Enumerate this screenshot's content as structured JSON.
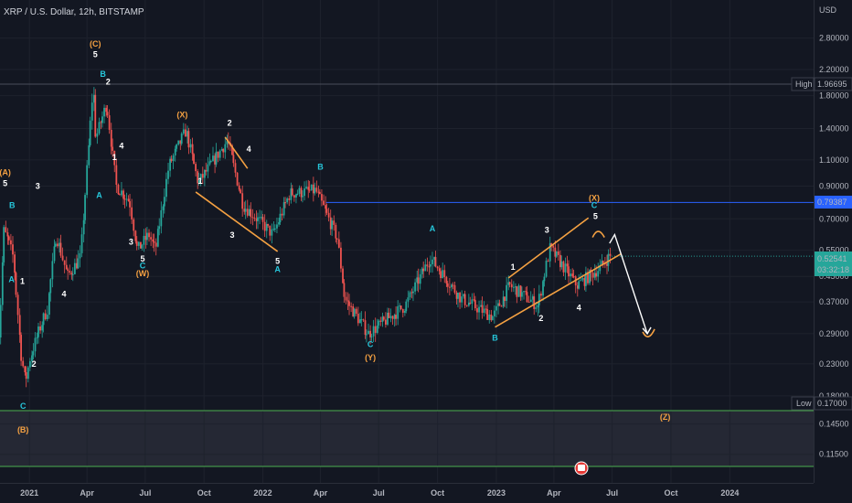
{
  "header": {
    "title": "XRP / U.S. Dollar, 12h, BITSTAMP"
  },
  "axis": {
    "currency": "USD",
    "high_label": "High",
    "high_value": "1.96695",
    "low_label": "Low",
    "low_value": "0.17000",
    "resistance_value": "0.79387",
    "current_price": "0.52541",
    "countdown": "03:32:18"
  },
  "chart_data": {
    "type": "candlestick",
    "symbol": "XRP / U.S. Dollar",
    "interval": "12h",
    "exchange": "BITSTAMP",
    "y_scale": "log",
    "y_ticks": [
      "2.80000",
      "2.20000",
      "1.80000",
      "1.40000",
      "1.10000",
      "0.90000",
      "0.70000",
      "0.55000",
      "0.45000",
      "0.37000",
      "0.29000",
      "0.23000",
      "0.18000",
      "0.14500",
      "0.11500"
    ],
    "x_ticks": [
      "2021",
      "Apr",
      "Jul",
      "Oct",
      "2022",
      "Apr",
      "Jul",
      "Oct",
      "2023",
      "Apr",
      "Jul",
      "Oct",
      "2024"
    ],
    "price_series": [
      {
        "date": "2020-11-18",
        "price": 0.29
      },
      {
        "date": "2020-11-25",
        "price": 0.64
      },
      {
        "date": "2020-12-01",
        "price": 0.6
      },
      {
        "date": "2020-12-10",
        "price": 0.52
      },
      {
        "date": "2020-12-22",
        "price": 0.25
      },
      {
        "date": "2020-12-29",
        "price": 0.2
      },
      {
        "date": "2021-01-05",
        "price": 0.24
      },
      {
        "date": "2021-01-20",
        "price": 0.3
      },
      {
        "date": "2021-02-01",
        "price": 0.35
      },
      {
        "date": "2021-02-15",
        "price": 0.62
      },
      {
        "date": "2021-03-05",
        "price": 0.45
      },
      {
        "date": "2021-03-25",
        "price": 0.52
      },
      {
        "date": "2021-04-14",
        "price": 1.96
      },
      {
        "date": "2021-04-18",
        "price": 1.3
      },
      {
        "date": "2021-05-05",
        "price": 1.7
      },
      {
        "date": "2021-05-20",
        "price": 0.9
      },
      {
        "date": "2021-06-10",
        "price": 0.8
      },
      {
        "date": "2021-06-22",
        "price": 0.55
      },
      {
        "date": "2021-07-10",
        "price": 0.62
      },
      {
        "date": "2021-07-20",
        "price": 0.55
      },
      {
        "date": "2021-08-10",
        "price": 1.05
      },
      {
        "date": "2021-09-06",
        "price": 1.38
      },
      {
        "date": "2021-09-25",
        "price": 0.92
      },
      {
        "date": "2021-11-10",
        "price": 1.28
      },
      {
        "date": "2021-12-04",
        "price": 0.78
      },
      {
        "date": "2022-01-20",
        "price": 0.62
      },
      {
        "date": "2022-02-15",
        "price": 0.85
      },
      {
        "date": "2022-03-28",
        "price": 0.87
      },
      {
        "date": "2022-05-01",
        "price": 0.6
      },
      {
        "date": "2022-05-12",
        "price": 0.38
      },
      {
        "date": "2022-06-18",
        "price": 0.29
      },
      {
        "date": "2022-08-15",
        "price": 0.36
      },
      {
        "date": "2022-09-23",
        "price": 0.52
      },
      {
        "date": "2022-11-10",
        "price": 0.38
      },
      {
        "date": "2022-12-30",
        "price": 0.33
      },
      {
        "date": "2023-01-25",
        "price": 0.42
      },
      {
        "date": "2023-03-10",
        "price": 0.36
      },
      {
        "date": "2023-03-29",
        "price": 0.56
      },
      {
        "date": "2023-05-10",
        "price": 0.42
      },
      {
        "date": "2023-06-15",
        "price": 0.48
      },
      {
        "date": "2023-06-30",
        "price": 0.525
      }
    ],
    "levels": {
      "high": 1.96695,
      "low": 0.17,
      "resistance": 0.79387,
      "last": 0.52541
    },
    "annotations": [
      {
        "label": "(A)",
        "color": "orange"
      },
      {
        "label": "(B)",
        "color": "orange"
      },
      {
        "label": "(C)",
        "color": "orange"
      },
      {
        "label": "(W)",
        "color": "orange"
      },
      {
        "label": "(X)",
        "color": "orange"
      },
      {
        "label": "(Y)",
        "color": "orange"
      },
      {
        "label": "(X)",
        "color": "orange"
      },
      {
        "label": "(Z)",
        "color": "orange"
      },
      {
        "label": "A",
        "color": "teal"
      },
      {
        "label": "B",
        "color": "teal"
      },
      {
        "label": "C",
        "color": "teal"
      },
      {
        "label": "1",
        "color": "white"
      },
      {
        "label": "2",
        "color": "white"
      },
      {
        "label": "3",
        "color": "white"
      },
      {
        "label": "4",
        "color": "white"
      },
      {
        "label": "5",
        "color": "white"
      }
    ]
  },
  "labels": [
    {
      "t": "(A)",
      "c": "#f5a142",
      "date": "2020-11-24",
      "price": 0.98
    },
    {
      "t": "5",
      "c": "#ffffff",
      "date": "2020-11-24",
      "price": 0.9
    },
    {
      "t": "B",
      "c": "#26c6da",
      "date": "2020-12-05",
      "price": 0.76
    },
    {
      "t": "A",
      "c": "#26c6da",
      "date": "2020-12-04",
      "price": 0.43
    },
    {
      "t": "1",
      "c": "#ffffff",
      "date": "2020-12-21",
      "price": 0.425
    },
    {
      "t": "2",
      "c": "#ffffff",
      "date": "2021-01-08",
      "price": 0.225
    },
    {
      "t": "3",
      "c": "#ffffff",
      "date": "2021-01-14",
      "price": 0.88
    },
    {
      "t": "4",
      "c": "#ffffff",
      "date": "2021-02-24",
      "price": 0.385
    },
    {
      "t": "C",
      "c": "#26c6da",
      "date": "2020-12-22",
      "price": 0.163
    },
    {
      "t": "(B)",
      "c": "#f5a142",
      "date": "2020-12-22",
      "price": 0.136
    },
    {
      "t": "(C)",
      "c": "#f5a142",
      "date": "2021-04-14",
      "price": 2.62
    },
    {
      "t": "5",
      "c": "#ffffff",
      "date": "2021-04-14",
      "price": 2.42
    },
    {
      "t": "B",
      "c": "#26c6da",
      "date": "2021-04-26",
      "price": 2.08
    },
    {
      "t": "2",
      "c": "#ffffff",
      "date": "2021-05-04",
      "price": 1.96
    },
    {
      "t": "4",
      "c": "#ffffff",
      "date": "2021-05-25",
      "price": 1.2
    },
    {
      "t": "1",
      "c": "#ffffff",
      "date": "2021-05-14",
      "price": 1.1
    },
    {
      "t": "A",
      "c": "#26c6da",
      "date": "2021-04-20",
      "price": 0.82
    },
    {
      "t": "3",
      "c": "#ffffff",
      "date": "2021-06-09",
      "price": 0.575
    },
    {
      "t": "5",
      "c": "#ffffff",
      "date": "2021-06-27",
      "price": 0.505
    },
    {
      "t": "C",
      "c": "#26c6da",
      "date": "2021-06-27",
      "price": 0.478
    },
    {
      "t": "(W)",
      "c": "#f5a142",
      "date": "2021-06-27",
      "price": 0.45
    },
    {
      "t": "(X)",
      "c": "#f5a142",
      "date": "2021-08-28",
      "price": 1.52
    },
    {
      "t": "2",
      "c": "#ffffff",
      "date": "2021-11-10",
      "price": 1.43
    },
    {
      "t": "4",
      "c": "#ffffff",
      "date": "2021-12-10",
      "price": 1.17
    },
    {
      "t": "1",
      "c": "#ffffff",
      "date": "2021-09-25",
      "price": 0.915
    },
    {
      "t": "3",
      "c": "#ffffff",
      "date": "2021-11-14",
      "price": 0.605
    },
    {
      "t": "5",
      "c": "#ffffff",
      "date": "2022-01-24",
      "price": 0.495
    },
    {
      "t": "A",
      "c": "#26c6da",
      "date": "2022-01-24",
      "price": 0.465
    },
    {
      "t": "B",
      "c": "#26c6da",
      "date": "2022-04-01",
      "price": 1.02
    },
    {
      "t": "C",
      "c": "#26c6da",
      "date": "2022-06-18",
      "price": 0.262
    },
    {
      "t": "(Y)",
      "c": "#f5a142",
      "date": "2022-06-18",
      "price": 0.236
    },
    {
      "t": "A",
      "c": "#26c6da",
      "date": "2022-09-23",
      "price": 0.635
    },
    {
      "t": "1",
      "c": "#ffffff",
      "date": "2023-01-27",
      "price": 0.474
    },
    {
      "t": "2",
      "c": "#ffffff",
      "date": "2023-03-12",
      "price": 0.32
    },
    {
      "t": "3",
      "c": "#ffffff",
      "date": "2023-03-21",
      "price": 0.63
    },
    {
      "t": "4",
      "c": "#ffffff",
      "date": "2023-05-10",
      "price": 0.347
    },
    {
      "t": "B",
      "c": "#26c6da",
      "date": "2022-12-30",
      "price": 0.275
    },
    {
      "t": "(X)",
      "c": "#f5a142",
      "date": "2023-06-03",
      "price": 0.805
    },
    {
      "t": "C",
      "c": "#26c6da",
      "date": "2023-06-03",
      "price": 0.76
    },
    {
      "t": "5",
      "c": "#ffffff",
      "date": "2023-06-05",
      "price": 0.7
    },
    {
      "t": "(Z)",
      "c": "#f5a142",
      "date": "2023-09-22",
      "price": 0.15
    }
  ],
  "trendlines": [
    {
      "c": "#f5a142",
      "d1": "2021-09-18",
      "p1": 0.86,
      "d2": "2022-01-24",
      "p2": 0.545
    },
    {
      "c": "#f5a142",
      "d1": "2021-11-03",
      "p1": 1.31,
      "d2": "2021-12-08",
      "p2": 1.03
    },
    {
      "c": "#f5a142",
      "d1": "2023-01-20",
      "p1": 0.445,
      "d2": "2023-05-25",
      "p2": 0.705
    },
    {
      "c": "#f5a142",
      "d1": "2022-12-30",
      "p1": 0.305,
      "d2": "2023-07-15",
      "p2": 0.535
    }
  ],
  "projection": {
    "c": "#ffffff",
    "d1": "2023-06-27",
    "p1": 0.58,
    "d2": "2023-07-05",
    "p2": 0.62,
    "d3": "2023-08-25",
    "p3": 0.29
  },
  "arc": {
    "c": "#f5a142"
  }
}
